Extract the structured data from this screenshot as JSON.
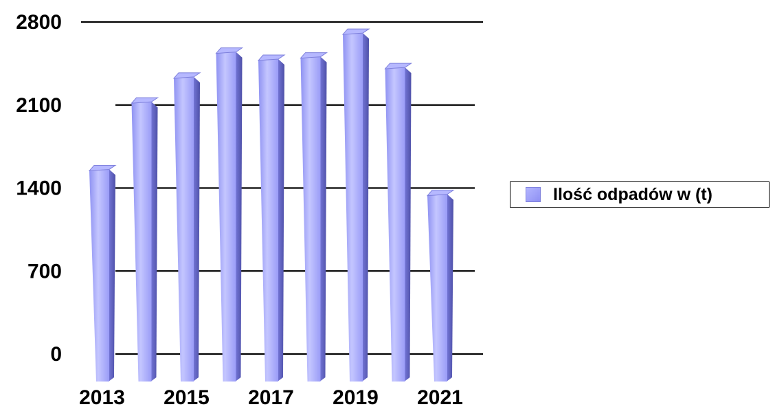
{
  "chart_data": {
    "type": "bar",
    "title": "",
    "xlabel": "",
    "ylabel": "",
    "categories": [
      "2013",
      "2014",
      "2015",
      "2016",
      "2017",
      "2018",
      "2019",
      "2020",
      "2021"
    ],
    "x_tick_labels": [
      "2013",
      "2015",
      "2017",
      "2019",
      "2021"
    ],
    "y_ticks": [
      "0",
      "700",
      "1400",
      "2100",
      "2800"
    ],
    "ylim": [
      0,
      2800
    ],
    "grid": true,
    "legend_position": "right",
    "series": [
      {
        "name": "Ilość odpadów w (t)",
        "values": [
          1580,
          2150,
          2360,
          2570,
          2510,
          2530,
          2730,
          2440,
          1370
        ],
        "color": "#9a9cf7"
      }
    ]
  },
  "legend": {
    "label": "Ilość odpadów w (t)"
  },
  "colors": {
    "bar_front": "#9a9cf7",
    "bar_highlight": "#c4c6ff",
    "bar_side": "#6366c6",
    "bar_top": "#b6b8ff",
    "grid": "#000000"
  }
}
